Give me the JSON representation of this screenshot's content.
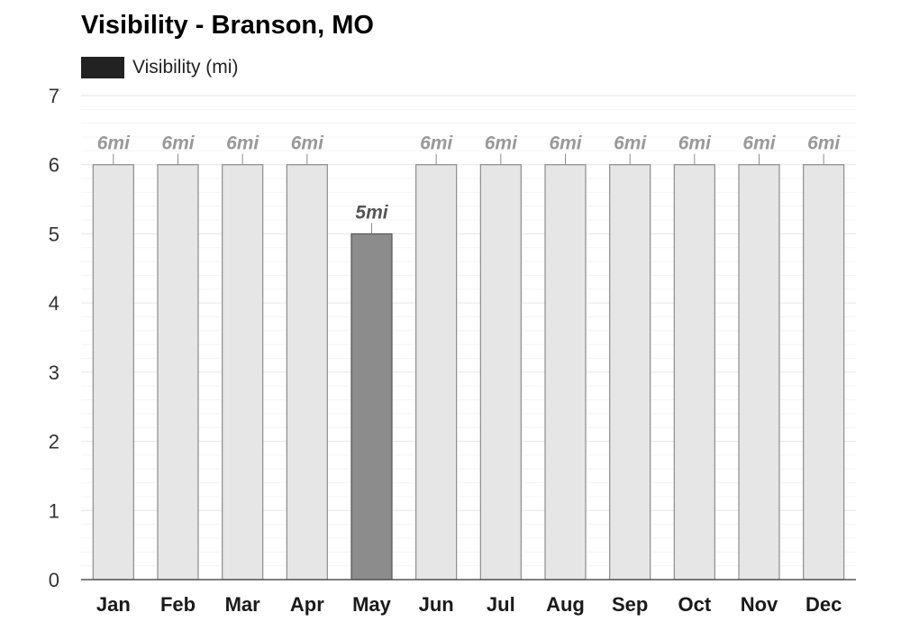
{
  "chart_data": {
    "type": "bar",
    "title": "Visibility - Branson, MO",
    "legend": {
      "label": "Visibility (mi)",
      "color": "#222222",
      "placement": "top-left"
    },
    "categories": [
      "Jan",
      "Feb",
      "Mar",
      "Apr",
      "May",
      "Jun",
      "Jul",
      "Aug",
      "Sep",
      "Oct",
      "Nov",
      "Dec"
    ],
    "series": [
      {
        "name": "Visibility (mi)",
        "values": [
          6,
          6,
          6,
          6,
          5,
          6,
          6,
          6,
          6,
          6,
          6,
          6
        ]
      }
    ],
    "data_labels": [
      "6mi",
      "6mi",
      "6mi",
      "6mi",
      "5mi",
      "6mi",
      "6mi",
      "6mi",
      "6mi",
      "6mi",
      "6mi",
      "6mi"
    ],
    "highlighted_index": 4,
    "ylim": [
      0,
      7
    ],
    "yticks": [
      "0",
      "1",
      "2",
      "3",
      "4",
      "5",
      "6",
      "7"
    ],
    "grid": true,
    "colors": {
      "bar_fill": "#e6e6e6",
      "bar_stroke": "#8c8c8c",
      "highlight_fill": "#8c8c8c",
      "highlight_stroke": "#555555",
      "label": "#999999",
      "highlight_label": "#555555",
      "grid": "#e6e6e6",
      "minor_grid": "#f4f4f4",
      "axis": "#555555"
    }
  }
}
